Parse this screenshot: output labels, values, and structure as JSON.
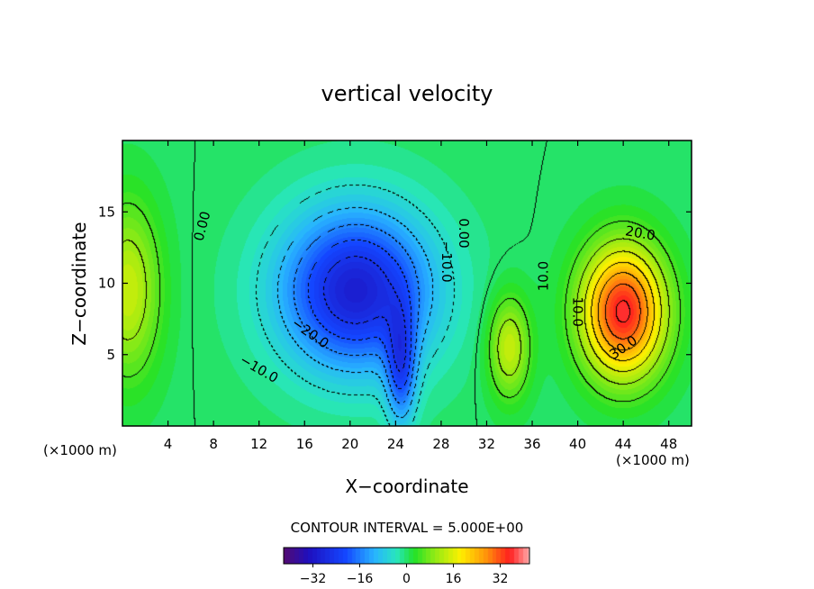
{
  "chart_data": {
    "type": "contour",
    "title": "vertical velocity",
    "xlabel": "X−coordinate",
    "ylabel": "Z−coordinate",
    "x_unit_left": "(×1000 m)",
    "x_unit_right": "(×1000 m)",
    "xlim": [
      0,
      50
    ],
    "ylim": [
      0,
      20
    ],
    "x_ticks": [
      4,
      8,
      12,
      16,
      20,
      24,
      28,
      32,
      36,
      40,
      44,
      48
    ],
    "y_ticks": [
      5,
      10,
      15
    ],
    "contour_interval_text": "CONTOUR INTERVAL = 5.000E+00",
    "contour_labels": [
      {
        "text": "0.00",
        "x": 7.0,
        "z": 14.0,
        "angle": -75
      },
      {
        "text": "0.00",
        "x": 30.0,
        "z": 13.5,
        "angle": 90
      },
      {
        "text": "−10.0",
        "x": 28.5,
        "z": 11.5,
        "angle": 90
      },
      {
        "text": "−20.0",
        "x": 16.5,
        "z": 6.5,
        "angle": 35
      },
      {
        "text": "−10.0",
        "x": 12.0,
        "z": 4.0,
        "angle": 30
      },
      {
        "text": "10.0",
        "x": 37.0,
        "z": 10.5,
        "angle": -90
      },
      {
        "text": "10.0",
        "x": 40.0,
        "z": 8.0,
        "angle": 90
      },
      {
        "text": "20.0",
        "x": 45.5,
        "z": 13.5,
        "angle": 10
      },
      {
        "text": "30.0",
        "x": 44.0,
        "z": 5.5,
        "angle": -35
      }
    ],
    "features": [
      {
        "kind": "min",
        "x": 20.5,
        "z": 9.5,
        "value": -30,
        "sx": 6.5,
        "sz": 5.5
      },
      {
        "kind": "min",
        "x": 24.5,
        "z": 4.0,
        "value": -18,
        "sx": 1.3,
        "sz": 4.0
      },
      {
        "kind": "max",
        "x": 44.0,
        "z": 8.0,
        "value": 36,
        "sx": 3.6,
        "sz": 4.5
      },
      {
        "kind": "max",
        "x": 34.0,
        "z": 5.5,
        "value": 14,
        "sx": 1.8,
        "sz": 3.5
      },
      {
        "kind": "max",
        "x": 0.5,
        "z": 9.5,
        "value": 14,
        "sx": 2.8,
        "sz": 6.0
      }
    ],
    "colorbar": {
      "min": -42,
      "max": 42,
      "tick_values": [
        -32,
        -16,
        0,
        16,
        32
      ],
      "tick_labels": [
        "−32",
        "−16",
        "0",
        "16",
        "32"
      ]
    },
    "grid": false,
    "legend": "colorbar-bottom",
    "colors": {
      "deep_negative": "#5a1070",
      "negative": "#1e40ff",
      "mid_negative": "#3ad6ff",
      "zero": "#22e322",
      "positive": "#ffef00",
      "strong_positive": "#ff2020",
      "extreme_positive": "#ffb0b0"
    }
  }
}
